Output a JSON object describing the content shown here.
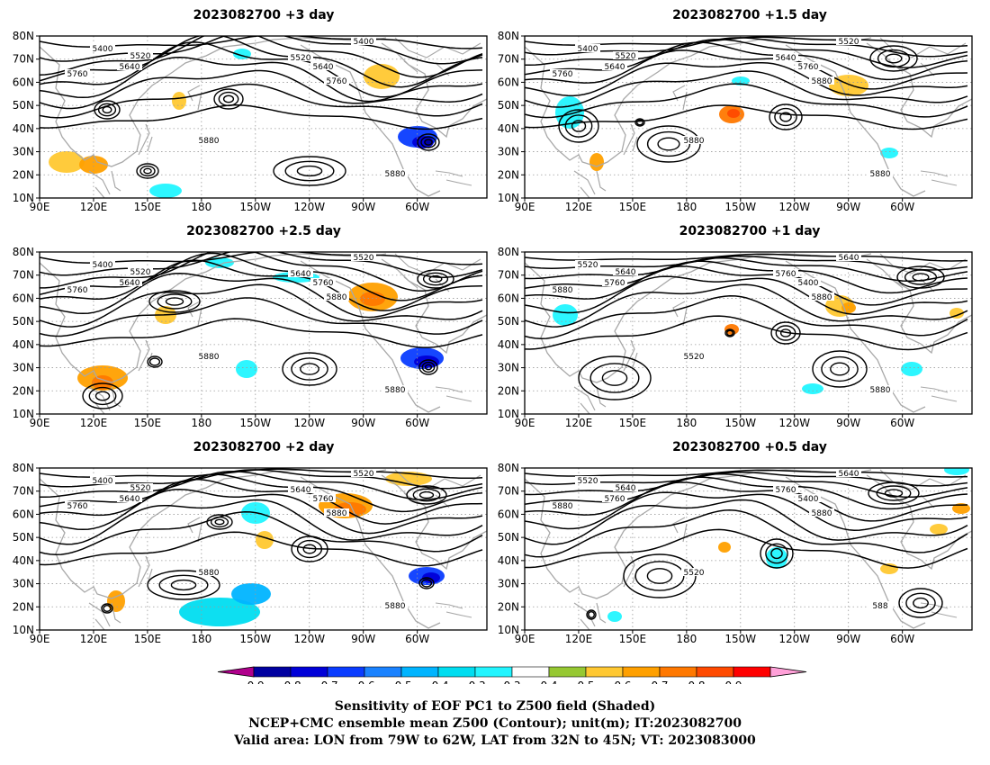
{
  "panels": [
    {
      "title": "2023082700 +3 day",
      "contour_labels": [
        "5400",
        "5520",
        "5640",
        "5760",
        "5880",
        "5400",
        "5520",
        "5640",
        "5760",
        "5880"
      ]
    },
    {
      "title": "2023082700 +1.5 day",
      "contour_labels": [
        "5400",
        "5520",
        "5640",
        "5760",
        "5880",
        "5520",
        "5640",
        "5760",
        "5880",
        "5880"
      ]
    },
    {
      "title": "2023082700 +2.5 day",
      "contour_labels": [
        "5400",
        "5520",
        "5640",
        "5760",
        "5880",
        "5520",
        "5640",
        "5760",
        "5880",
        "5880"
      ]
    },
    {
      "title": "2023082700 +1 day",
      "contour_labels": [
        "5520",
        "5640",
        "5760",
        "5880",
        "5520",
        "5640",
        "5760",
        "5400",
        "5880",
        "5880"
      ]
    },
    {
      "title": "2023082700 +2 day",
      "contour_labels": [
        "5400",
        "5520",
        "5640",
        "5760",
        "5880",
        "5520",
        "5640",
        "5760",
        "5880",
        "5880"
      ]
    },
    {
      "title": "2023082700 +0.5 day",
      "contour_labels": [
        "5520",
        "5640",
        "5760",
        "5880",
        "5520",
        "5640",
        "5760",
        "5400",
        "5880",
        "588"
      ]
    }
  ],
  "axes": {
    "x_ticks": [
      "90E",
      "120E",
      "150E",
      "180",
      "150W",
      "120W",
      "90W",
      "60W"
    ],
    "y_ticks": [
      "80N",
      "70N",
      "60N",
      "50N",
      "40N",
      "30N",
      "20N",
      "10N"
    ]
  },
  "colorbar": {
    "ticks": [
      "-0.9",
      "-0.8",
      "-0.7",
      "-0.6",
      "-0.5",
      "-0.4",
      "-0.3",
      "0.3",
      "0.4",
      "0.5",
      "0.6",
      "0.7",
      "0.8",
      "0.9"
    ],
    "colors": [
      "#b0008c",
      "#0000a0",
      "#0000d8",
      "#0a3cff",
      "#1a82ff",
      "#00b4ff",
      "#00ddf0",
      "#22f5ff",
      "#ffffff",
      "#96c832",
      "#ffc832",
      "#ffa000",
      "#ff7800",
      "#ff4a00",
      "#ff0000",
      "#ffa0d8"
    ]
  },
  "colors": {
    "contour": "#000000",
    "coast": "#a8a8a8",
    "grid": "#9a9a9a"
  },
  "caption": {
    "line1": "Sensitivity of EOF PC1 to Z500 field (Shaded)",
    "line2": "NCEP+CMC ensemble mean Z500 (Contour); unit(m); IT:2023082700",
    "line3": "Valid area: LON from 79W to 62W, LAT from 32N to 45N; VT: 2023083000"
  }
}
